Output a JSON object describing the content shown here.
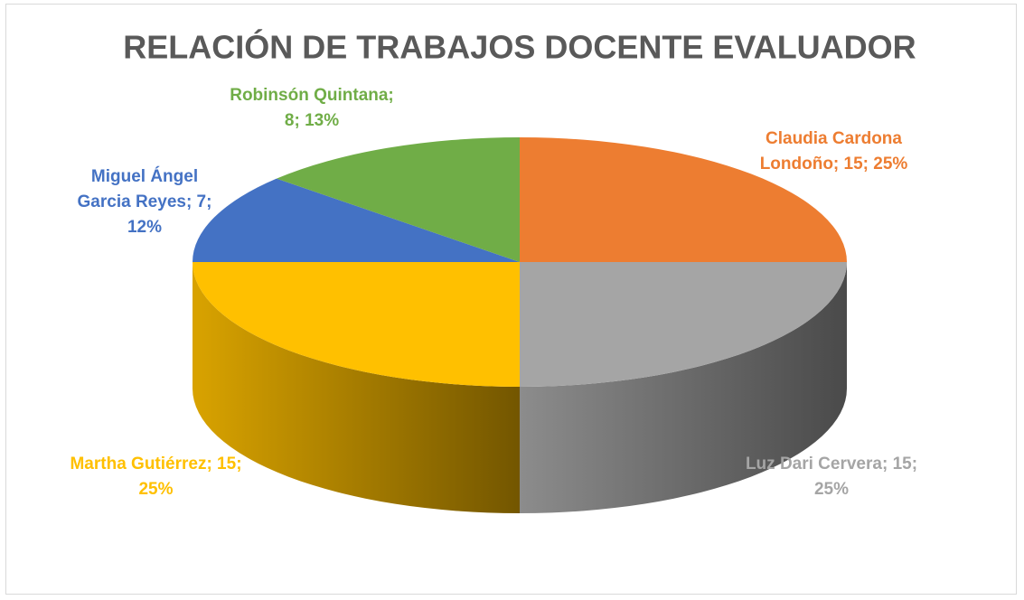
{
  "chart_data": {
    "type": "pie3d",
    "title": "RELACIÓN DE TRABAJOS DOCENTE EVALUADOR",
    "categories": [
      "Claudia Cardona Londoño",
      "Luz Dari Cervera",
      "Martha Gutiérrez",
      "Miguel Ángel Garcia Reyes",
      "Robinsón Quintana"
    ],
    "values": [
      15,
      15,
      15,
      7,
      8
    ],
    "value_labels": [
      "Claudia Cardona Londoño; 15; 25%",
      "Luz Dari Cervera; 15; 25%",
      "Martha Gutiérrez; 15; 25%",
      "Miguel Ángel Garcia Reyes; 7; 12%",
      "Robinsón Quintana; 8; 13%"
    ],
    "colors": [
      "#ED7D31",
      "#A5A5A5",
      "#FFC000",
      "#4472C4",
      "#70AD47"
    ]
  }
}
